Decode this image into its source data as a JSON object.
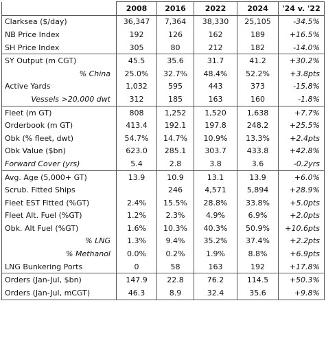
{
  "header": {
    "label": "",
    "cols": [
      "2008",
      "2016",
      "2022",
      "2024",
      "'24 v. '22"
    ]
  },
  "rows": [
    {
      "label": "Clarksea ($/day)",
      "v": [
        "36,347",
        "7,364",
        "38,330",
        "25,105"
      ],
      "chg": "-34.5%",
      "style": "",
      "sep": true
    },
    {
      "label": "NB Price Index",
      "v": [
        "192",
        "126",
        "162",
        "189"
      ],
      "chg": "+16.5%",
      "style": "",
      "sep": false
    },
    {
      "label": "SH Price Index",
      "v": [
        "305",
        "80",
        "212",
        "182"
      ],
      "chg": "-14.0%",
      "style": "",
      "sep": false
    },
    {
      "label": "SY Output (m CGT)",
      "v": [
        "45.5",
        "35.6",
        "31.7",
        "41.2"
      ],
      "chg": "+30.2%",
      "style": "",
      "sep": true
    },
    {
      "label": "% China",
      "v": [
        "25.0%",
        "32.7%",
        "48.4%",
        "52.2%"
      ],
      "chg": "+3.8pts",
      "style": "right",
      "sep": false
    },
    {
      "label": "Active Yards",
      "v": [
        "1,032",
        "595",
        "443",
        "373"
      ],
      "chg": "-15.8%",
      "style": "",
      "sep": false
    },
    {
      "label": "Vessels >20,000 dwt",
      "v": [
        "312",
        "185",
        "163",
        "160"
      ],
      "chg": "-1.8%",
      "style": "right",
      "sep": false
    },
    {
      "label": "Fleet (m GT)",
      "v": [
        "808",
        "1,252",
        "1,520",
        "1,638"
      ],
      "chg": "+7.7%",
      "style": "",
      "sep": true
    },
    {
      "label": "Orderbook (m GT)",
      "v": [
        "413.4",
        "192.1",
        "197.8",
        "248.2"
      ],
      "chg": "+25.5%",
      "style": "",
      "sep": false
    },
    {
      "label": "Obk (% fleet, dwt)",
      "v": [
        "54.7%",
        "14.7%",
        "10.9%",
        "13.3%"
      ],
      "chg": "+2.4pts",
      "style": "",
      "sep": false
    },
    {
      "label": "Obk Value ($bn)",
      "v": [
        "623.0",
        "285.1",
        "303.7",
        "433.8"
      ],
      "chg": "+42.8%",
      "style": "",
      "sep": false
    },
    {
      "label": "Forward Cover (yrs)",
      "v": [
        "5.4",
        "2.8",
        "3.8",
        "3.6"
      ],
      "chg": "-0.2yrs",
      "style": "it",
      "sep": false
    },
    {
      "label": "Avg. Age (5,000+ GT)",
      "v": [
        "13.9",
        "10.9",
        "13.1",
        "13.9"
      ],
      "chg": "+6.0%",
      "style": "",
      "sep": true
    },
    {
      "label": "Scrub. Fitted Ships",
      "v": [
        "",
        "246",
        "4,571",
        "5,894"
      ],
      "chg": "+28.9%",
      "style": "",
      "sep": false
    },
    {
      "label": "Fleet EST Fitted (%GT)",
      "v": [
        "2.4%",
        "15.5%",
        "28.8%",
        "33.8%"
      ],
      "chg": "+5.0pts",
      "style": "",
      "sep": false
    },
    {
      "label": "Fleet Alt. Fuel (%GT)",
      "v": [
        "1.2%",
        "2.3%",
        "4.9%",
        "6.9%"
      ],
      "chg": "+2.0pts",
      "style": "",
      "sep": false
    },
    {
      "label": "Obk. Alt Fuel (%GT)",
      "v": [
        "1.6%",
        "10.3%",
        "40.3%",
        "50.9%"
      ],
      "chg": "+10.6pts",
      "style": "",
      "sep": false
    },
    {
      "label": "% LNG",
      "v": [
        "1.3%",
        "9.4%",
        "35.2%",
        "37.4%"
      ],
      "chg": "+2.2pts",
      "style": "right",
      "sep": false
    },
    {
      "label": "% Methanol",
      "v": [
        "0.0%",
        "0.2%",
        "1.9%",
        "8.8%"
      ],
      "chg": "+6.9pts",
      "style": "right",
      "sep": false
    },
    {
      "label": "LNG Bunkering Ports",
      "v": [
        "0",
        "58",
        "163",
        "192"
      ],
      "chg": "+17.8%",
      "style": "",
      "sep": false
    },
    {
      "label": "Orders (Jan-Jul, $bn)",
      "v": [
        "147.9",
        "22.8",
        "76.2",
        "114.5"
      ],
      "chg": "+50.3%",
      "style": "",
      "sep": true
    },
    {
      "label": "Orders (Jan-Jul, mCGT)",
      "v": [
        "46.3",
        "8.9",
        "32.4",
        "35.6"
      ],
      "chg": "+9.8%",
      "style": "",
      "sep": false
    }
  ]
}
